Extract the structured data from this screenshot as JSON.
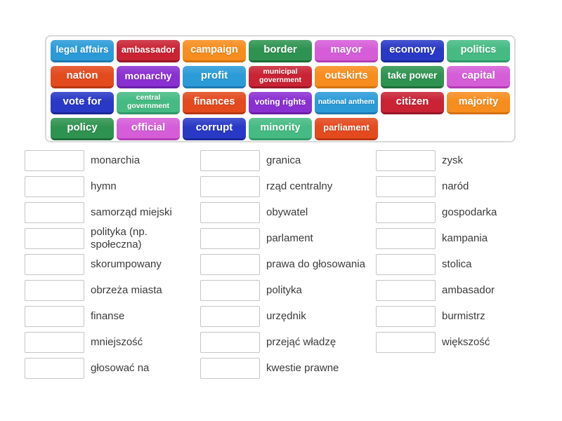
{
  "page": {
    "background": "#ffffff"
  },
  "palette": {
    "blue": {
      "bg": "#2B9BD8",
      "edge": "#1D7AB3"
    },
    "crimson": {
      "bg": "#C92334",
      "edge": "#991826"
    },
    "orange": {
      "bg": "#F78D1E",
      "edge": "#D3730F"
    },
    "green": {
      "bg": "#2E9350",
      "edge": "#1E6E3A"
    },
    "orchid": {
      "bg": "#D55ED8",
      "edge": "#B13CB4"
    },
    "royal": {
      "bg": "#2939C6",
      "edge": "#1B2799"
    },
    "purple": {
      "bg": "#8A30D2",
      "edge": "#6A1FA8"
    },
    "seagreen": {
      "bg": "#45BB83",
      "edge": "#2F9968"
    },
    "orangered": {
      "bg": "#E34A1D",
      "edge": "#B93711"
    }
  },
  "word_bank": {
    "rows": [
      {
        "tiles": [
          {
            "label": "legal affairs",
            "color": "blue",
            "fs": 13.5
          },
          {
            "label": "ambassador",
            "color": "crimson",
            "fs": 13
          },
          {
            "label": "campaign",
            "color": "orange",
            "fs": 14.5
          },
          {
            "label": "border",
            "color": "green",
            "fs": 15
          },
          {
            "label": "mayor",
            "color": "orchid",
            "fs": 15
          },
          {
            "label": "economy",
            "color": "royal",
            "fs": 15
          },
          {
            "label": "politics",
            "color": "seagreen",
            "fs": 14.5
          }
        ]
      },
      {
        "tiles": [
          {
            "label": "nation",
            "color": "orangered",
            "fs": 15
          },
          {
            "label": "monarchy",
            "color": "purple",
            "fs": 14
          },
          {
            "label": "profit",
            "color": "blue",
            "fs": 15
          },
          {
            "label": "municipal government",
            "color": "crimson",
            "fs": 10.5
          },
          {
            "label": "outskirts",
            "color": "orange",
            "fs": 14.5
          },
          {
            "label": "take power",
            "color": "green",
            "fs": 13.5
          },
          {
            "label": "capital",
            "color": "orchid",
            "fs": 15
          }
        ]
      },
      {
        "tiles": [
          {
            "label": "vote for",
            "color": "royal",
            "fs": 15
          },
          {
            "label": "central government",
            "color": "seagreen",
            "fs": 10.5
          },
          {
            "label": "finances",
            "color": "orangered",
            "fs": 14.5
          },
          {
            "label": "voting rights",
            "color": "purple",
            "fs": 12
          },
          {
            "label": "national anthem",
            "color": "blue",
            "fs": 10.5
          },
          {
            "label": "citizen",
            "color": "crimson",
            "fs": 15
          },
          {
            "label": "majority",
            "color": "orange",
            "fs": 14.5
          }
        ]
      },
      {
        "tiles": [
          {
            "label": "policy",
            "color": "green",
            "fs": 15
          },
          {
            "label": "official",
            "color": "orchid",
            "fs": 15
          },
          {
            "label": "corrupt",
            "color": "royal",
            "fs": 15
          },
          {
            "label": "minority",
            "color": "seagreen",
            "fs": 14.5
          },
          {
            "label": "parliament",
            "color": "orangered",
            "fs": 13
          }
        ]
      }
    ]
  },
  "match_list": {
    "columns": [
      {
        "items": [
          "monarchia",
          "hymn",
          "samorząd miejski",
          "polityka (np. społeczna)",
          "skorumpowany",
          "obrzeża miasta",
          "finanse",
          "mniejszość",
          "głosować na"
        ]
      },
      {
        "items": [
          "granica",
          "rząd centralny",
          "obywatel",
          "parlament",
          "prawa do głosowania",
          "polityka",
          "urzędnik",
          "przejąć władzę",
          "kwestie prawne"
        ]
      },
      {
        "items": [
          "zysk",
          "naród",
          "gospodarka",
          "kampania",
          "stolica",
          "ambasador",
          "burmistrz",
          "większość"
        ]
      }
    ]
  }
}
